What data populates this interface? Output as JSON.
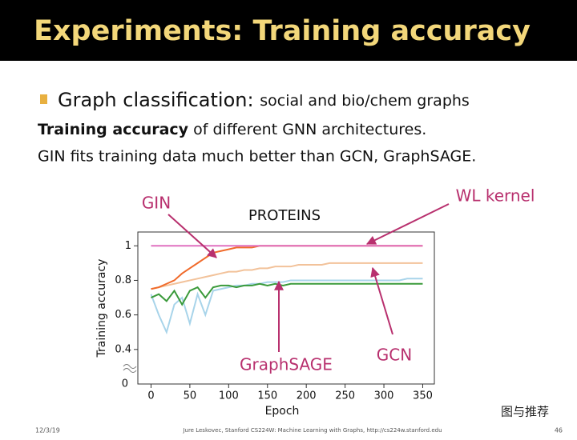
{
  "slide": {
    "title": "Experiments: Training accuracy",
    "bullet_lead": "Graph classification:",
    "bullet_rest": "social and bio/chem graphs",
    "line2_bold": "Training accuracy",
    "line2_rest": "of different GNN architectures.",
    "line3": "GIN fits training data much better than GCN, GraphSAGE.",
    "footer_date": "12/3/19",
    "footer_center": "Jure Leskovec, Stanford CS224W: Machine Learning with Graphs, http://cs224w.stanford.edu",
    "footer_page": "46",
    "watermark": "图与推荐"
  },
  "chart_data": {
    "type": "line",
    "title": "PROTEINS",
    "x_label": "Epoch",
    "y_label": "Training accuracy",
    "y_break_label": "0",
    "x": [
      0,
      10,
      20,
      30,
      40,
      50,
      60,
      70,
      80,
      90,
      100,
      110,
      120,
      130,
      140,
      150,
      160,
      170,
      180,
      190,
      200,
      210,
      220,
      230,
      240,
      250,
      260,
      270,
      280,
      290,
      300,
      310,
      320,
      330,
      340,
      350
    ],
    "series": [
      {
        "color": "#a8d4ea",
        "values": [
          0.72,
          0.6,
          0.5,
          0.66,
          0.7,
          0.55,
          0.72,
          0.6,
          0.74,
          0.75,
          0.76,
          0.77,
          0.77,
          0.78,
          0.78,
          0.79,
          0.79,
          0.79,
          0.8,
          0.8,
          0.8,
          0.8,
          0.8,
          0.8,
          0.8,
          0.8,
          0.8,
          0.8,
          0.8,
          0.8,
          0.8,
          0.8,
          0.8,
          0.81,
          0.81,
          0.81
        ]
      },
      {
        "name": "GCN",
        "color": "#f2c29a",
        "values": [
          0.75,
          0.76,
          0.77,
          0.78,
          0.79,
          0.8,
          0.81,
          0.82,
          0.83,
          0.84,
          0.85,
          0.85,
          0.86,
          0.86,
          0.87,
          0.87,
          0.88,
          0.88,
          0.88,
          0.89,
          0.89,
          0.89,
          0.89,
          0.9,
          0.9,
          0.9,
          0.9,
          0.9,
          0.9,
          0.9,
          0.9,
          0.9,
          0.9,
          0.9,
          0.9,
          0.9
        ]
      },
      {
        "name": "GraphSAGE",
        "color": "#3a9a3a",
        "values": [
          0.7,
          0.72,
          0.68,
          0.74,
          0.66,
          0.74,
          0.76,
          0.7,
          0.76,
          0.77,
          0.77,
          0.76,
          0.77,
          0.77,
          0.78,
          0.77,
          0.78,
          0.77,
          0.78,
          0.78,
          0.78,
          0.78,
          0.78,
          0.78,
          0.78,
          0.78,
          0.78,
          0.78,
          0.78,
          0.78,
          0.78,
          0.78,
          0.78,
          0.78,
          0.78,
          0.78
        ]
      },
      {
        "name": "GIN",
        "color": "#f06a2a",
        "values": [
          0.75,
          0.76,
          0.78,
          0.8,
          0.84,
          0.87,
          0.9,
          0.93,
          0.96,
          0.97,
          0.98,
          0.99,
          0.99,
          0.99,
          1.0,
          1.0,
          1.0,
          1.0,
          1.0,
          1.0,
          1.0,
          1.0,
          1.0,
          1.0,
          1.0,
          1.0,
          1.0,
          1.0,
          1.0,
          1.0,
          1.0,
          1.0,
          1.0,
          1.0,
          1.0,
          1.0
        ]
      },
      {
        "name": "WL kernel",
        "color": "#e070c0",
        "values": [
          1.0,
          1.0,
          1.0,
          1.0,
          1.0,
          1.0,
          1.0,
          1.0,
          1.0,
          1.0,
          1.0,
          1.0,
          1.0,
          1.0,
          1.0,
          1.0,
          1.0,
          1.0,
          1.0,
          1.0,
          1.0,
          1.0,
          1.0,
          1.0,
          1.0,
          1.0,
          1.0,
          1.0,
          1.0,
          1.0,
          1.0,
          1.0,
          1.0,
          1.0,
          1.0,
          1.0
        ]
      }
    ],
    "xlim": [
      -17,
      365
    ],
    "ylim": [
      0.2,
      1.08
    ],
    "xticks": [
      0,
      50,
      100,
      150,
      200,
      250,
      300,
      350
    ],
    "yticks": [
      0.4,
      0.6,
      0.8,
      1.0
    ]
  }
}
